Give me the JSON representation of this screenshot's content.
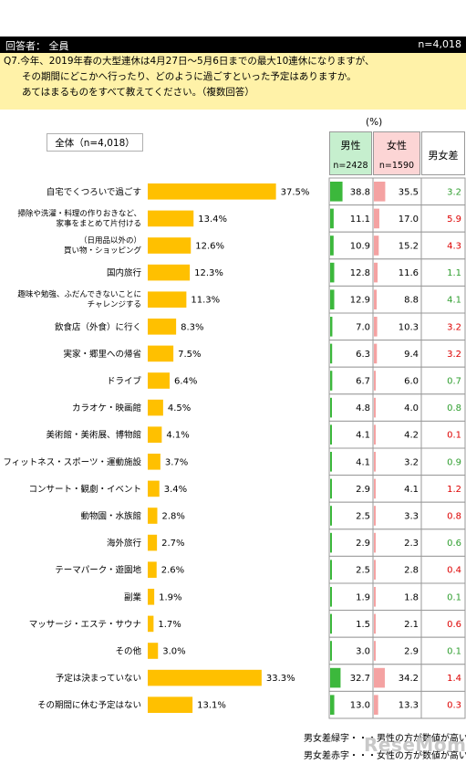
{
  "header": {
    "left": "回答者： 全員",
    "right": "n=4,018"
  },
  "question": {
    "lines": [
      "Q7.今年、2019年春の大型連休は4月27日～5月6日までの最大10連休になりますが、",
      "その期間にどこかへ行ったり、どのように過ごすといった予定はありますか。",
      "あてはまるものをすべて教えてください。（複数回答）"
    ]
  },
  "unit": "(%)",
  "legend": "全体（n=4,018）",
  "table_header": {
    "male": "男性",
    "male_n": "n=2428",
    "female": "女性",
    "female_n": "n=1590",
    "diff": "男女差"
  },
  "colors": {
    "bar": "#ffc000",
    "male": "#3cb83c",
    "female": "#f4a2a2",
    "green_text": "#2e9e2e",
    "red_text": "#dd0000"
  },
  "chart_data": {
    "type": "bar",
    "orientation": "horizontal",
    "xlim": [
      0,
      100
    ],
    "categories": [
      [
        "自宅でくつろいで過ごす"
      ],
      [
        "掃除や洗濯・料理の作りおきなど、",
        "家事をまとめて片付ける"
      ],
      [
        "（日用品以外の）",
        "買い物・ショッピング"
      ],
      [
        "国内旅行"
      ],
      [
        "趣味や勉強、ふだんできないことに",
        "チャレンジする"
      ],
      [
        "飲食店（外食）に行く"
      ],
      [
        "実家・郷里への帰省"
      ],
      [
        "ドライブ"
      ],
      [
        "カラオケ・映画館"
      ],
      [
        "美術館・美術展、博物館"
      ],
      [
        "フィットネス・スポーツ・運動施設"
      ],
      [
        "コンサート・観劇・イベント"
      ],
      [
        "動物園・水族館"
      ],
      [
        "海外旅行"
      ],
      [
        "テーマパーク・遊園地"
      ],
      [
        "副業"
      ],
      [
        "マッサージ・エステ・サウナ"
      ],
      [
        "その他"
      ],
      [
        "予定は決まっていない"
      ],
      [
        "その期間に休む予定はない"
      ]
    ],
    "series": [
      {
        "name": "全体（n=4,018）",
        "values": [
          37.5,
          13.4,
          12.6,
          12.3,
          11.3,
          8.3,
          7.5,
          6.4,
          4.5,
          4.1,
          3.7,
          3.4,
          2.8,
          2.7,
          2.6,
          1.9,
          1.7,
          3.0,
          33.3,
          13.1
        ]
      },
      {
        "name": "男性",
        "values": [
          38.8,
          11.1,
          10.9,
          12.8,
          12.9,
          7.0,
          6.3,
          6.7,
          4.8,
          4.1,
          4.1,
          2.9,
          2.5,
          2.9,
          2.5,
          1.9,
          1.5,
          3.0,
          32.7,
          13.0
        ]
      },
      {
        "name": "女性",
        "values": [
          35.5,
          17.0,
          15.2,
          11.6,
          8.8,
          10.3,
          9.4,
          6.0,
          4.0,
          4.2,
          3.2,
          4.1,
          3.3,
          2.3,
          2.8,
          1.8,
          2.1,
          2.9,
          34.2,
          13.3
        ]
      },
      {
        "name": "男女差",
        "values": [
          3.2,
          5.9,
          4.3,
          1.1,
          4.1,
          3.2,
          3.2,
          0.7,
          0.8,
          0.1,
          0.9,
          1.2,
          0.8,
          0.6,
          0.4,
          0.1,
          0.6,
          0.1,
          1.4,
          0.3
        ]
      }
    ]
  },
  "footer": {
    "green": "男女差緑字・・・男性の方が数値が高い",
    "red": "男女差赤字・・・女性の方が数値が高い"
  },
  "logo": "ReseMom"
}
